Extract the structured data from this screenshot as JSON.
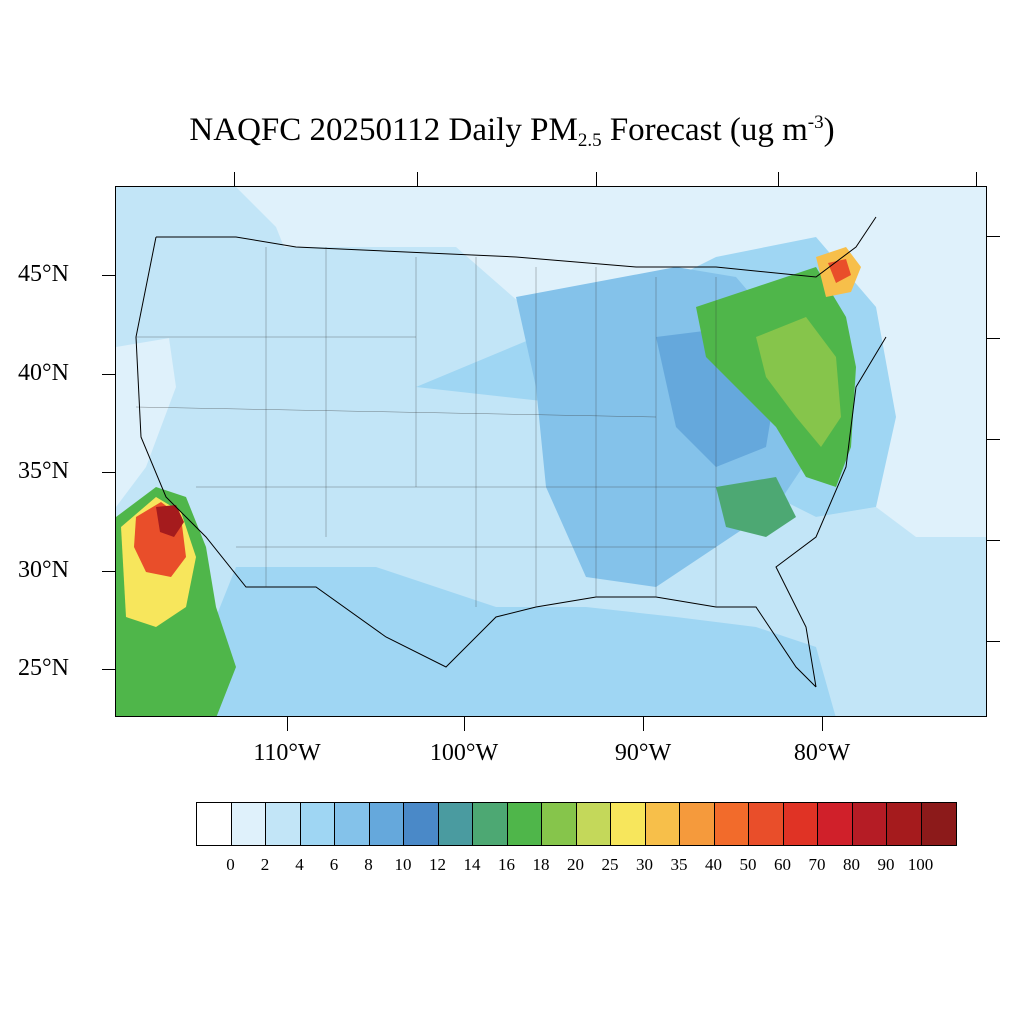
{
  "title": {
    "main": "NAQFC 20250112 Daily PM",
    "sub": "2.5",
    "rest": " Forecast (ug m",
    "sup": "-3",
    "close": ")"
  },
  "lat_labels": [
    "45°N",
    "40°N",
    "35°N",
    "30°N",
    "25°N"
  ],
  "lon_labels": [
    "110°W",
    "100°W",
    "90°W",
    "80°W"
  ],
  "colorbar": {
    "levels": [
      "0",
      "2",
      "4",
      "6",
      "8",
      "10",
      "12",
      "14",
      "16",
      "18",
      "20",
      "25",
      "30",
      "35",
      "40",
      "50",
      "60",
      "70",
      "80",
      "90",
      "100"
    ],
    "colors": [
      "#ffffff",
      "#dff1fb",
      "#c2e5f7",
      "#9fd6f3",
      "#84c2ea",
      "#65a8dc",
      "#4a89c8",
      "#4a9ba0",
      "#4da873",
      "#4fb64a",
      "#86c54b",
      "#c4d85a",
      "#f7e65c",
      "#f7bf4a",
      "#f59a3c",
      "#f26b2b",
      "#e94e2a",
      "#e03325",
      "#d0202a",
      "#b51c25",
      "#a51b1d",
      "#8c1a1a"
    ]
  },
  "map": {
    "background": "#dff1fb",
    "boundary_color": "#000000"
  }
}
